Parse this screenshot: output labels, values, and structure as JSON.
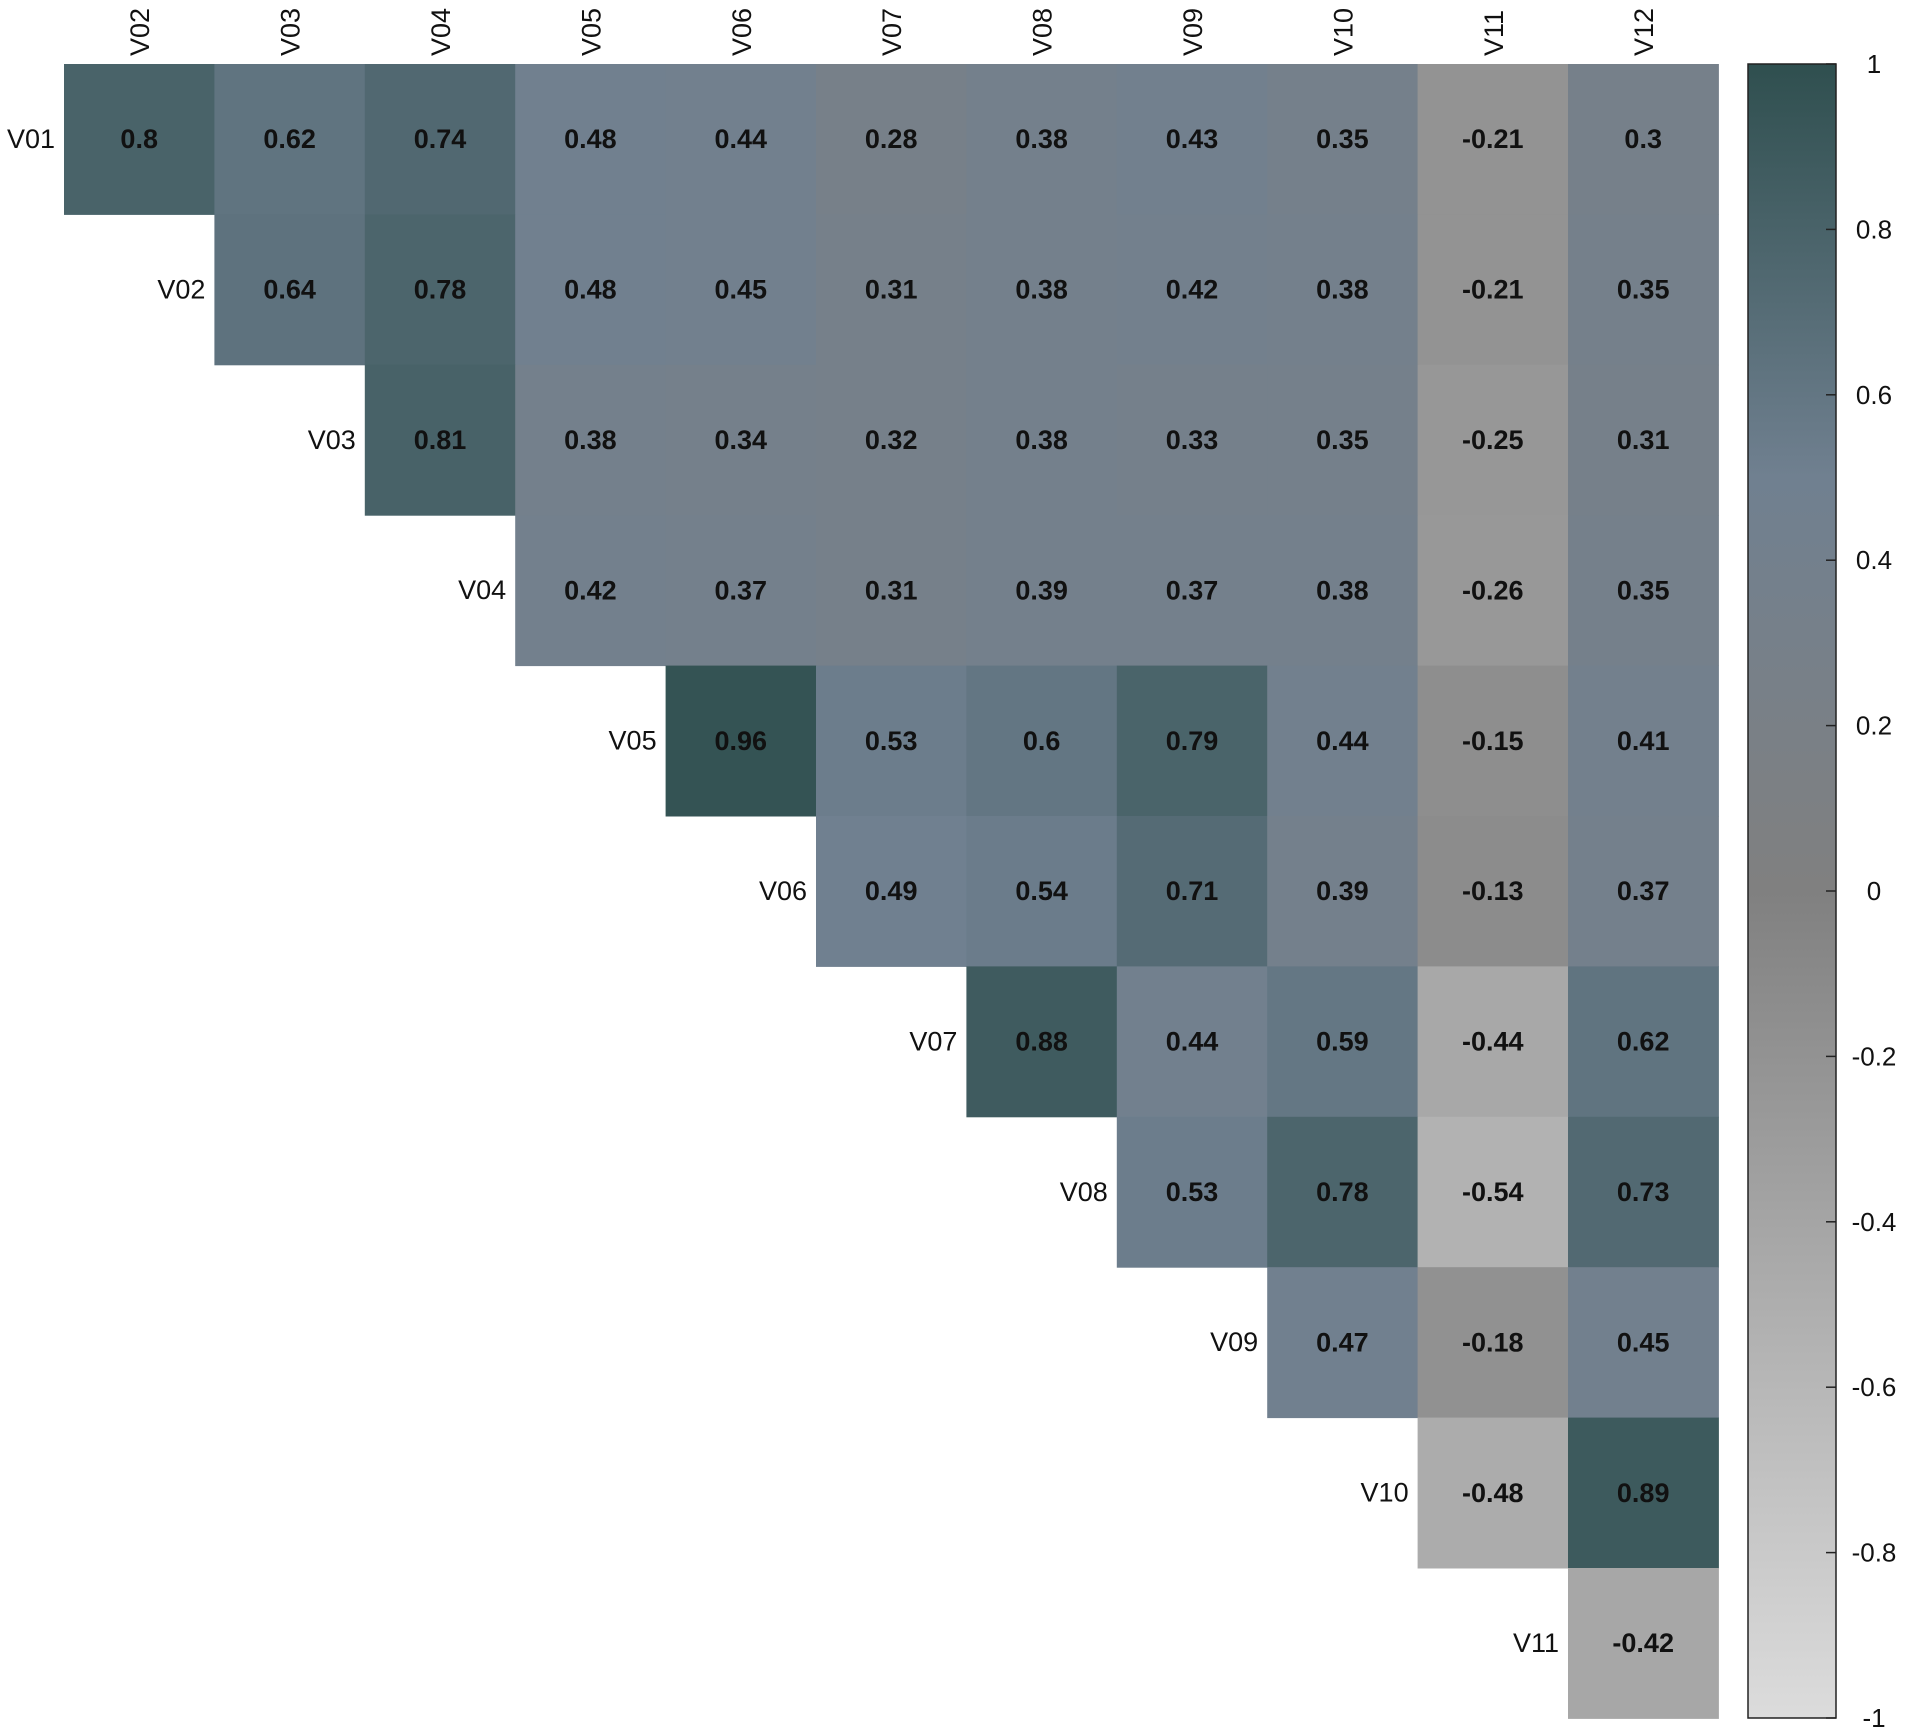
{
  "chart_data": {
    "type": "heatmap",
    "subtype": "correlation-matrix-upper-triangle",
    "title": "",
    "row_labels": [
      "V01",
      "V02",
      "V03",
      "V04",
      "V05",
      "V06",
      "V07",
      "V08",
      "V09",
      "V10",
      "V11"
    ],
    "column_labels": [
      "V02",
      "V03",
      "V04",
      "V05",
      "V06",
      "V07",
      "V08",
      "V09",
      "V10",
      "V11",
      "V12"
    ],
    "values": [
      [
        0.8,
        0.62,
        0.74,
        0.48,
        0.44,
        0.28,
        0.38,
        0.43,
        0.35,
        -0.21,
        0.3
      ],
      [
        null,
        0.64,
        0.78,
        0.48,
        0.45,
        0.31,
        0.38,
        0.42,
        0.38,
        -0.21,
        0.35
      ],
      [
        null,
        null,
        0.81,
        0.38,
        0.34,
        0.32,
        0.38,
        0.33,
        0.35,
        -0.25,
        0.31
      ],
      [
        null,
        null,
        null,
        0.42,
        0.37,
        0.31,
        0.39,
        0.37,
        0.38,
        -0.26,
        0.35
      ],
      [
        null,
        null,
        null,
        null,
        0.96,
        0.53,
        0.6,
        0.79,
        0.44,
        -0.15,
        0.41
      ],
      [
        null,
        null,
        null,
        null,
        null,
        0.49,
        0.54,
        0.71,
        0.39,
        -0.13,
        0.37
      ],
      [
        null,
        null,
        null,
        null,
        null,
        null,
        0.88,
        0.44,
        0.59,
        -0.44,
        0.62
      ],
      [
        null,
        null,
        null,
        null,
        null,
        null,
        null,
        0.53,
        0.78,
        -0.54,
        0.73
      ],
      [
        null,
        null,
        null,
        null,
        null,
        null,
        null,
        null,
        0.47,
        -0.18,
        0.45
      ],
      [
        null,
        null,
        null,
        null,
        null,
        null,
        null,
        null,
        null,
        -0.48,
        0.89
      ],
      [
        null,
        null,
        null,
        null,
        null,
        null,
        null,
        null,
        null,
        null,
        -0.42
      ]
    ],
    "color_scale": {
      "min": -1,
      "max": 1,
      "stops": [
        {
          "value": -1,
          "color": "#dcdcdc"
        },
        {
          "value": 0,
          "color": "#808080"
        },
        {
          "value": 0.5,
          "color": "#708090"
        },
        {
          "value": 1,
          "color": "#2f4f4f"
        }
      ]
    },
    "colorbar": {
      "ticks": [
        "1",
        "0.8",
        "0.6",
        "0.4",
        "0.2",
        "0",
        "-0.2",
        "-0.4",
        "-0.6",
        "-0.8",
        "-1"
      ],
      "placement": "right"
    },
    "column_label_placement": "top",
    "row_label_placement": "diagonal-left",
    "grid": false,
    "legend": "colorbar-right"
  }
}
